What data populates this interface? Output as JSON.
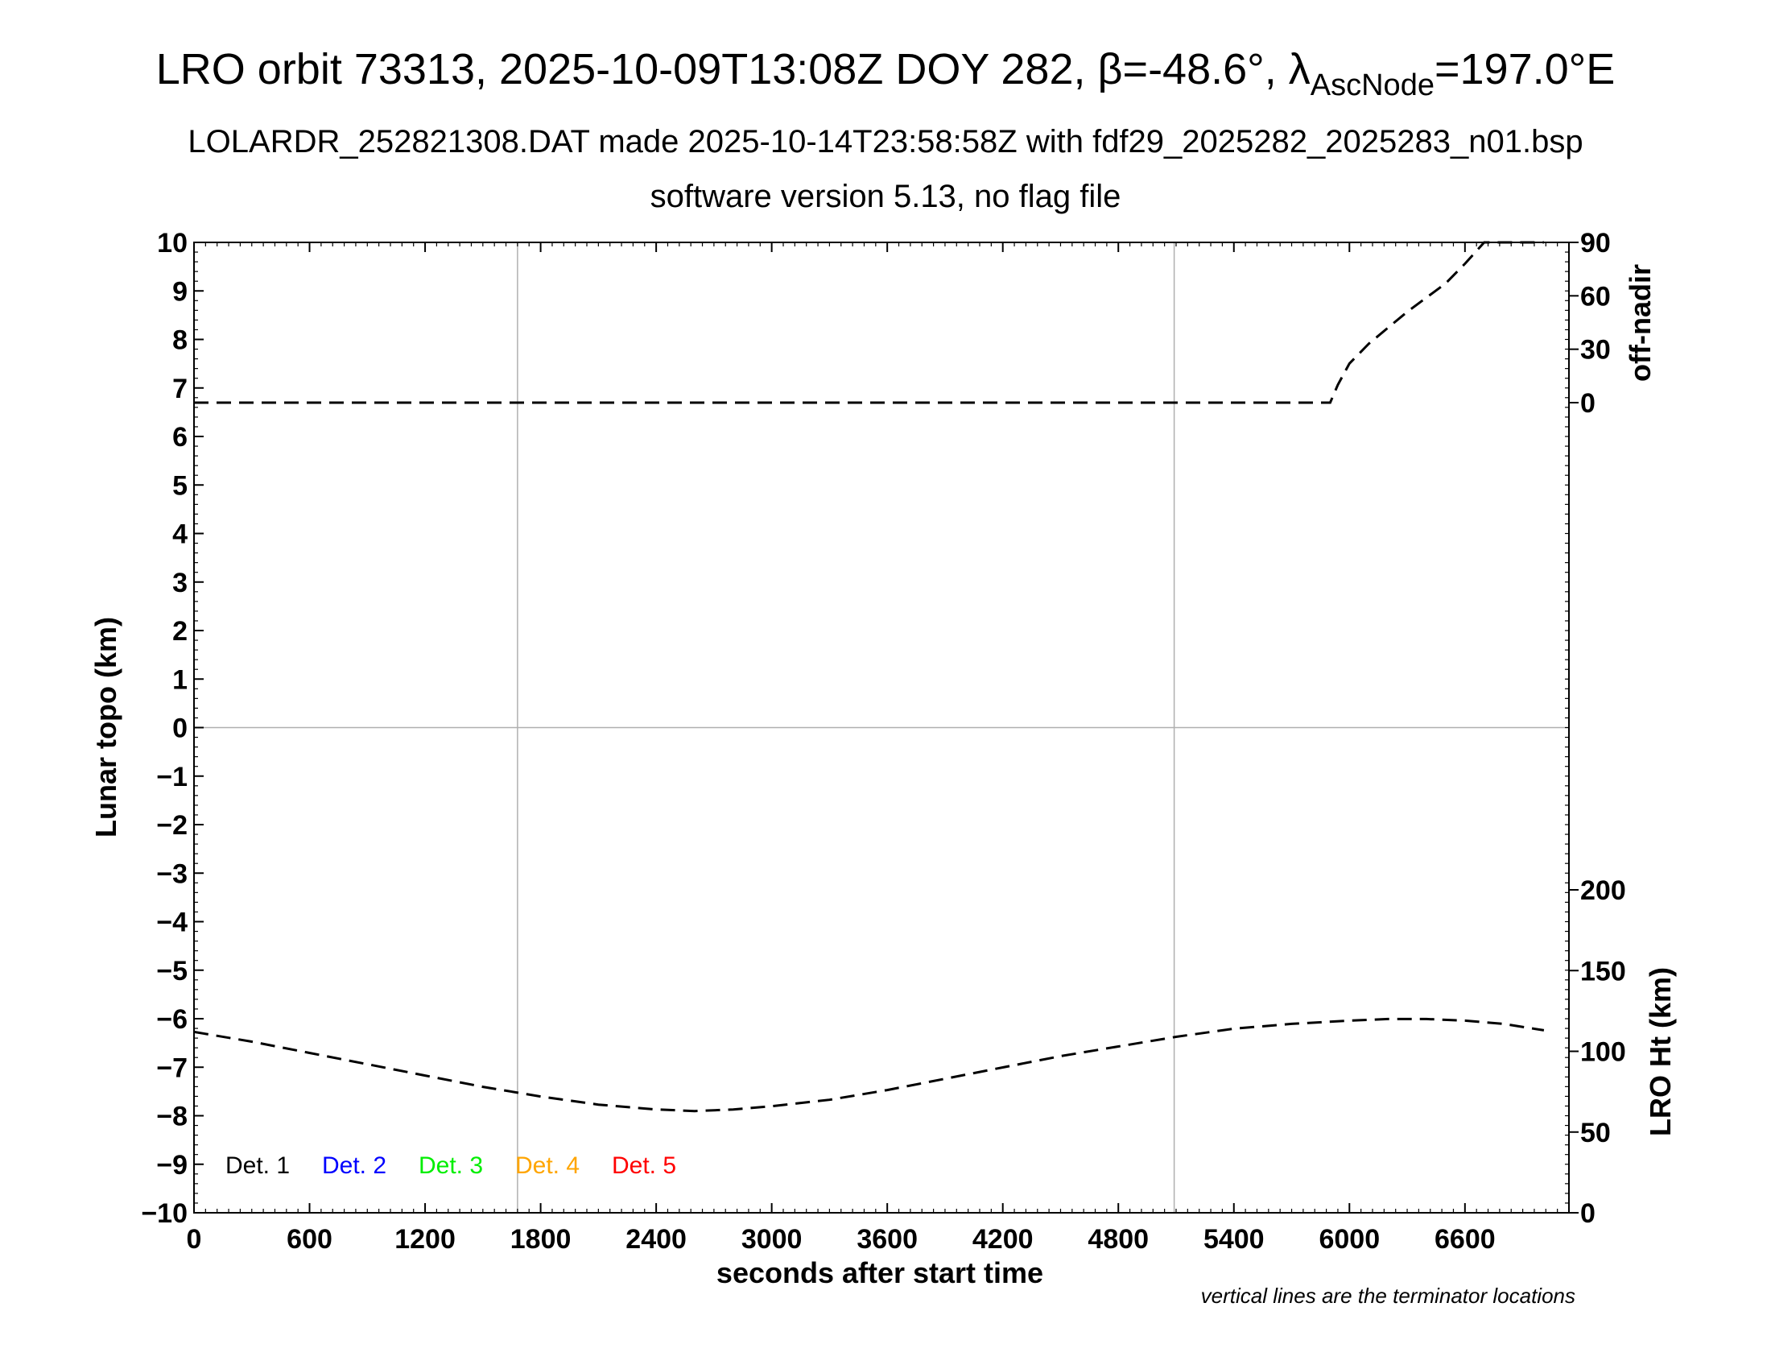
{
  "header": {
    "title_main": "LRO orbit 73313, 2025-10-09T13:08Z DOY 282, β=-48.6°, λ",
    "title_sub": "AscNode",
    "title_end": "=197.0°E",
    "subtitle1": "LOLARDR_252821308.DAT made 2025-10-14T23:58:58Z with fdf29_2025282_2025283_n01.bsp",
    "subtitle2": "software version 5.13, no flag file"
  },
  "footer_note": "vertical lines are the terminator locations",
  "chart_data": {
    "type": "line",
    "xlabel": "seconds after start time",
    "ylabel": "Lunar topo (km)",
    "xlim": [
      0,
      7140
    ],
    "ylim": [
      -10,
      10
    ],
    "x_ticks": [
      0,
      600,
      1200,
      1800,
      2400,
      3000,
      3600,
      4200,
      4800,
      5400,
      6000,
      6600
    ],
    "y_ticks": [
      10,
      9,
      8,
      7,
      6,
      5,
      4,
      3,
      2,
      1,
      0,
      -1,
      -2,
      -3,
      -4,
      -5,
      -6,
      -7,
      -8,
      -9,
      -10
    ],
    "y_tick_labels": [
      "10",
      "9",
      "8",
      "7",
      "6",
      "5",
      "4",
      "3",
      "2",
      "1",
      "0",
      "−1",
      "−2",
      "−3",
      "−4",
      "−5",
      "−6",
      "−7",
      "−8",
      "−9",
      "−10"
    ],
    "grid": {
      "horizontal_at": [
        0
      ],
      "vertical_at": [
        1680,
        5090
      ],
      "color": "#b0b0b0"
    },
    "right_axis_top": {
      "label": "off-nadir",
      "ticks": [
        0,
        30,
        60,
        90
      ],
      "series": {
        "style": "dashed",
        "x": [
          0,
          600,
          1200,
          1800,
          2400,
          3000,
          3600,
          4200,
          4800,
          5400,
          5900,
          5940,
          6000,
          6100,
          6200,
          6300,
          6400,
          6500,
          6600,
          6700,
          6800,
          6900,
          7010
        ],
        "y": [
          0,
          0,
          0,
          0,
          0,
          0,
          0,
          0,
          0,
          0,
          0,
          10,
          22,
          33,
          42,
          51,
          59,
          67,
          78,
          90,
          90,
          90,
          90
        ]
      }
    },
    "right_axis_bottom": {
      "label": "LRO Ht (km)",
      "ticks": [
        0,
        50,
        100,
        150,
        200
      ],
      "series": {
        "style": "dashed",
        "x": [
          0,
          300,
          600,
          900,
          1200,
          1500,
          1800,
          2100,
          2400,
          2600,
          2800,
          3000,
          3300,
          3600,
          3900,
          4200,
          4500,
          4800,
          5100,
          5400,
          5700,
          6000,
          6200,
          6400,
          6600,
          6800,
          7010
        ],
        "y": [
          112,
          106,
          99,
          92,
          85,
          78,
          72,
          67,
          64,
          63,
          64,
          66,
          70,
          76,
          83,
          90,
          97,
          103,
          109,
          114,
          117,
          119,
          120,
          120,
          119,
          117,
          113
        ]
      }
    },
    "legend": [
      {
        "name": "Det. 1",
        "color": "#000000"
      },
      {
        "name": "Det. 2",
        "color": "#0000ff"
      },
      {
        "name": "Det. 3",
        "color": "#00ee00"
      },
      {
        "name": "Det. 4",
        "color": "#ffa500"
      },
      {
        "name": "Det. 5",
        "color": "#ff0000"
      }
    ]
  }
}
